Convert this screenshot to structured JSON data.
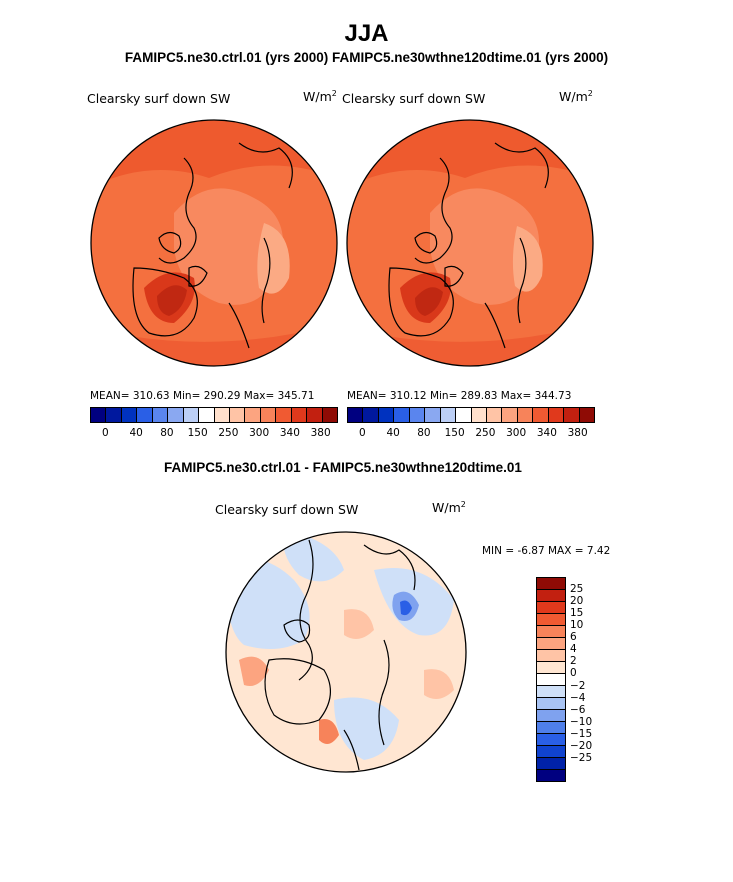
{
  "header": {
    "title": "JJA",
    "subtitle": "FAMIPC5.ne30.ctrl.01 (yrs 2000)  FAMIPC5.ne30wthne120dtime.01 (yrs 2000)"
  },
  "panels": [
    {
      "label": "Clearsky surf down SW",
      "units_base": "W/m",
      "units_exp": "2",
      "stats": "MEAN= 310.63  Min= 290.29  Max= 345.71"
    },
    {
      "label": "Clearsky surf down SW",
      "units_base": "W/m",
      "units_exp": "2",
      "stats": "MEAN= 310.12  Min= 289.83  Max= 344.73"
    }
  ],
  "abs_colorbar": {
    "colors": [
      "#000080",
      "#00189e",
      "#0032bf",
      "#2a5fe6",
      "#5a85ee",
      "#8aa8f1",
      "#bccff6",
      "#ffffff",
      "#ffe0cc",
      "#ffc4a6",
      "#fca480",
      "#f7835a",
      "#f05a32",
      "#e0391c",
      "#c22010",
      "#8f0b05"
    ],
    "ticks": [
      "0",
      "40",
      "80",
      "150",
      "250",
      "300",
      "340",
      "380"
    ]
  },
  "diff": {
    "title": "FAMIPC5.ne30.ctrl.01 - FAMIPC5.ne30wthne120dtime.01",
    "label": "Clearsky surf down SW",
    "units_base": "W/m",
    "units_exp": "2",
    "stats": "MIN =   -6.87 MAX =    7.42"
  },
  "diff_colorbar": {
    "colors": [
      "#8f0b05",
      "#c22010",
      "#e0391c",
      "#f05a32",
      "#f7835a",
      "#fca480",
      "#ffc4a6",
      "#ffe6d2",
      "#ffffff",
      "#cfe0f8",
      "#a9c4f4",
      "#7fa2ef",
      "#4f7fea",
      "#2a5fe6",
      "#1043d0",
      "#0022a8",
      "#000080"
    ],
    "ticks": [
      "25",
      "20",
      "15",
      "10",
      "6",
      "4",
      "2",
      "0",
      "−2",
      "−4",
      "−6",
      "−10",
      "−15",
      "−20",
      "−25"
    ]
  },
  "chart_data": [
    {
      "type": "heatmap",
      "title": "Clearsky surf down SW",
      "subtitle": "FAMIPC5.ne30.ctrl.01 (yrs 2000)",
      "units": "W/m2",
      "projection": "north polar stereographic",
      "mean": 310.63,
      "min": 290.29,
      "max": 345.71,
      "levels": [
        0,
        40,
        80,
        150,
        250,
        300,
        340,
        380
      ]
    },
    {
      "type": "heatmap",
      "title": "Clearsky surf down SW",
      "subtitle": "FAMIPC5.ne30wthne120dtime.01 (yrs 2000)",
      "units": "W/m2",
      "projection": "north polar stereographic",
      "mean": 310.12,
      "min": 289.83,
      "max": 344.73,
      "levels": [
        0,
        40,
        80,
        150,
        250,
        300,
        340,
        380
      ]
    },
    {
      "type": "heatmap",
      "title": "FAMIPC5.ne30.ctrl.01 - FAMIPC5.ne30wthne120dtime.01",
      "units": "W/m2",
      "projection": "north polar stereographic",
      "min": -6.87,
      "max": 7.42,
      "levels": [
        -25,
        -20,
        -15,
        -10,
        -6,
        -4,
        -2,
        0,
        2,
        4,
        6,
        10,
        15,
        20,
        25
      ]
    }
  ]
}
